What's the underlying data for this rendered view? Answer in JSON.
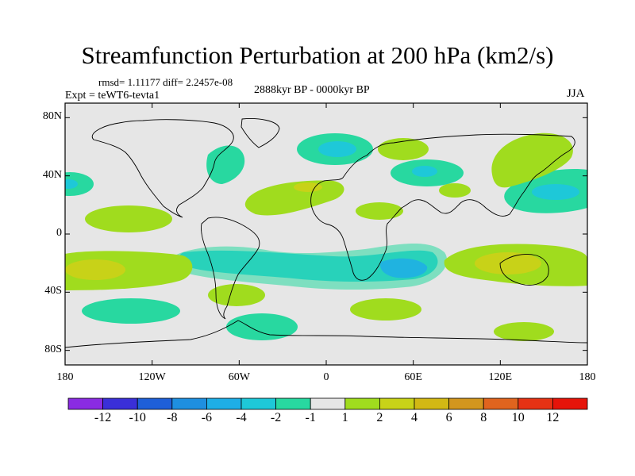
{
  "header": {
    "title": "Streamfunction Perturbation at 200 hPa (km2/s)",
    "stats": "rmsd= 1.11177 diff= 2.2457e-08",
    "experiment": "Expt = teWT6-tevta1",
    "period": "2888kyr BP - 0000kyr BP",
    "season": "JJA"
  },
  "map": {
    "projection": "cylindrical-equidistant",
    "lon_range": [
      -180,
      180
    ],
    "lat_range": [
      -90,
      90
    ],
    "ocean_fill": "#e6e6e6",
    "y_tick_labels": [
      {
        "label": "80N",
        "lat": 80
      },
      {
        "label": "40N",
        "lat": 40
      },
      {
        "label": "0",
        "lat": 0
      },
      {
        "label": "40S",
        "lat": -40
      },
      {
        "label": "80S",
        "lat": -80
      }
    ],
    "x_tick_labels": [
      {
        "label": "180",
        "lon": -180
      },
      {
        "label": "120W",
        "lon": -120
      },
      {
        "label": "60W",
        "lon": -60
      },
      {
        "label": "0",
        "lon": 0
      },
      {
        "label": "60E",
        "lon": 60
      },
      {
        "label": "120E",
        "lon": 120
      },
      {
        "label": "180",
        "lon": 180
      }
    ]
  },
  "colorbar": {
    "colors": [
      "#8a2be2",
      "#3a2fd8",
      "#1e5fd8",
      "#1e8fe0",
      "#1eaee6",
      "#1ec8d8",
      "#28d8a0",
      "#e6e6e6",
      "#a0dc1e",
      "#c8d218",
      "#d2b814",
      "#d2961e",
      "#e0641e",
      "#e63214",
      "#e6140a"
    ],
    "labels": [
      "-12",
      "-10",
      "-8",
      "-6",
      "-4",
      "-2",
      "-1",
      "1",
      "2",
      "4",
      "6",
      "8",
      "10",
      "12"
    ]
  },
  "chart_data": {
    "type": "heatmap",
    "title": "Streamfunction Perturbation at 200 hPa (km2/s)",
    "units": "km2/s",
    "levels": [
      -12,
      -10,
      -8,
      -6,
      -4,
      -2,
      -1,
      1,
      2,
      4,
      6,
      8,
      10,
      12
    ],
    "anomaly_regions": [
      {
        "name": "north-atlantic-negative",
        "lon": -55,
        "lat": 48,
        "value": -2
      },
      {
        "name": "nordic-seas-negative",
        "lon": 5,
        "lat": 63,
        "value": -2
      },
      {
        "name": "central-asia-negative",
        "lon": 60,
        "lat": 42,
        "value": -2
      },
      {
        "name": "north-pacific-west-negative",
        "lon": 150,
        "lat": 32,
        "value": -2
      },
      {
        "name": "dateline-north-negative",
        "lon": -172,
        "lat": 33,
        "value": -2
      },
      {
        "name": "southern-subtropics-negative-band",
        "lon": 0,
        "lat": -30,
        "value": -2
      },
      {
        "name": "indian-ocean-negative",
        "lon": 50,
        "lat": -28,
        "value": -4
      },
      {
        "name": "south-pacific-negative",
        "lon": -135,
        "lat": -50,
        "value": -1
      },
      {
        "name": "antarctic-pacific-negative",
        "lon": -40,
        "lat": -70,
        "value": -1
      },
      {
        "name": "north-africa-positive",
        "lon": -20,
        "lat": 30,
        "value": 2
      },
      {
        "name": "arabia-positive",
        "lon": 35,
        "lat": 22,
        "value": 2
      },
      {
        "name": "east-asia-positive",
        "lon": 120,
        "lat": 50,
        "value": 2
      },
      {
        "name": "south-indian-pacific-positive",
        "lon": 140,
        "lat": -28,
        "value": 4
      },
      {
        "name": "south-pacific-west-positive",
        "lon": -165,
        "lat": -28,
        "value": 4
      },
      {
        "name": "eastern-pacific-positive",
        "lon": -130,
        "lat": 5,
        "value": 2
      },
      {
        "name": "south-atlantic-positive",
        "lon": 40,
        "lat": -55,
        "value": 2
      },
      {
        "name": "south-america-south-positive",
        "lon": -65,
        "lat": -45,
        "value": 2
      },
      {
        "name": "southern-ocean-positive",
        "lon": 130,
        "lat": -65,
        "value": 2
      }
    ]
  }
}
